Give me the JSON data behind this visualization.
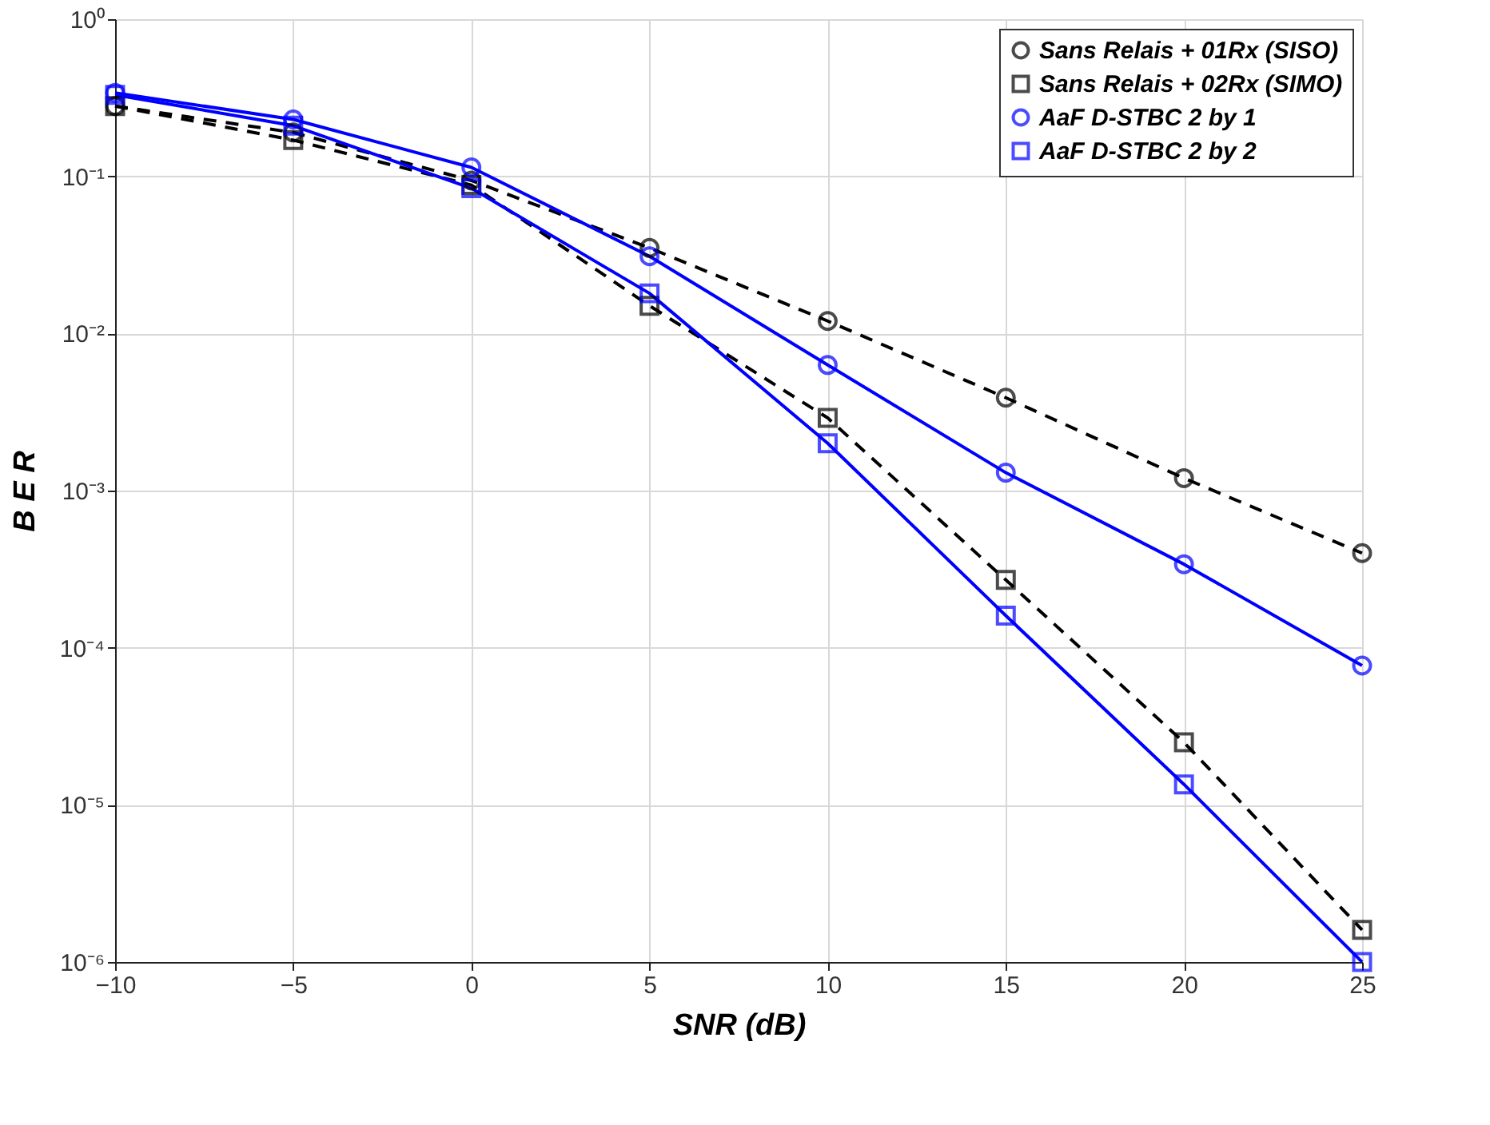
{
  "chart_data": {
    "type": "line",
    "xlabel": "SNR (dB)",
    "ylabel": "B E R",
    "log": "y",
    "grid": true,
    "legend": "top right",
    "x": [
      -10,
      -5,
      0,
      5,
      10,
      15,
      20,
      25
    ],
    "xlim": [
      -10,
      25
    ],
    "xticks": [
      -10,
      -5,
      0,
      5,
      10,
      15,
      20,
      25
    ],
    "ylim": [
      1e-06,
      1
    ],
    "yticks": [
      {
        "value": 1e-06,
        "label": "10⁻⁶"
      },
      {
        "value": 1e-05,
        "label": "10⁻⁵"
      },
      {
        "value": 0.0001,
        "label": "10⁻⁴"
      },
      {
        "value": 0.001,
        "label": "10⁻³"
      },
      {
        "value": 0.01,
        "label": "10⁻²"
      },
      {
        "value": 0.1,
        "label": "10⁻¹"
      },
      {
        "value": 1,
        "label": "10⁰"
      }
    ],
    "series": [
      {
        "name": "Sans Relais + 01Rx (SISO)",
        "color": "#000000",
        "marker": "circle",
        "line_style": "dashed",
        "values": [
          0.28,
          0.19,
          0.094,
          0.035,
          0.012,
          0.0039,
          0.0012,
          0.0004
        ]
      },
      {
        "name": "Sans Relais + 02Rx (SIMO)",
        "color": "#000000",
        "marker": "square",
        "line_style": "dashed",
        "values": [
          0.28,
          0.17,
          0.088,
          0.015,
          0.0029,
          0.00027,
          2.5e-05,
          1.6e-06
        ]
      },
      {
        "name": "AaF D-STBC 2 by 1",
        "color": "#0000ff",
        "marker": "circle",
        "line_style": "solid",
        "values": [
          0.34,
          0.23,
          0.114,
          0.031,
          0.0063,
          0.0013,
          0.00034,
          7.7e-05
        ]
      },
      {
        "name": "AaF D-STBC 2 by 2",
        "color": "#0000ff",
        "marker": "square",
        "line_style": "solid",
        "values": [
          0.33,
          0.21,
          0.084,
          0.018,
          0.002,
          0.00016,
          1.35e-05,
          1e-06
        ]
      }
    ]
  }
}
